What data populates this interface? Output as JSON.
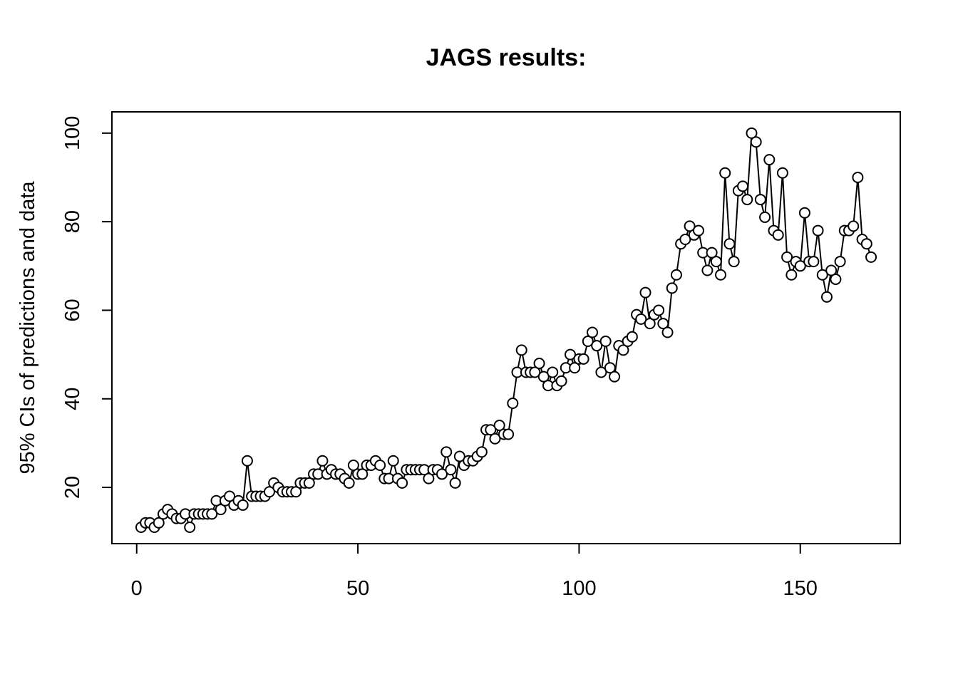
{
  "chart_data": {
    "type": "line",
    "title": "JAGS results:",
    "ylabel": "95% CIs of predictions and data",
    "x": [
      1,
      2,
      3,
      4,
      5,
      6,
      7,
      8,
      9,
      10,
      11,
      12,
      13,
      14,
      15,
      16,
      17,
      18,
      19,
      20,
      21,
      22,
      23,
      24,
      25,
      26,
      27,
      28,
      29,
      30,
      31,
      32,
      33,
      34,
      35,
      36,
      37,
      38,
      39,
      40,
      41,
      42,
      43,
      44,
      45,
      46,
      47,
      48,
      49,
      50,
      51,
      52,
      53,
      54,
      55,
      56,
      57,
      58,
      59,
      60,
      61,
      62,
      63,
      64,
      65,
      66,
      67,
      68,
      69,
      70,
      71,
      72,
      73,
      74,
      75,
      76,
      77,
      78,
      79,
      80,
      81,
      82,
      83,
      84,
      85,
      86,
      87,
      88,
      89,
      90,
      91,
      92,
      93,
      94,
      95,
      96,
      97,
      98,
      99,
      100,
      101,
      102,
      103,
      104,
      105,
      106,
      107,
      108,
      109,
      110,
      111,
      112,
      113,
      114,
      115,
      116,
      117,
      118,
      119,
      120,
      121,
      122,
      123,
      124,
      125,
      126,
      127,
      128,
      129,
      130,
      131,
      132,
      133,
      134,
      135,
      136,
      137,
      138,
      139,
      140,
      141,
      142,
      143,
      144,
      145,
      146,
      147,
      148,
      149,
      150,
      151,
      152,
      153,
      154,
      155,
      156,
      157,
      158,
      159,
      160,
      161,
      162,
      163,
      164,
      165,
      166
    ],
    "values": [
      11,
      12,
      12,
      11,
      12,
      14,
      15,
      14,
      13,
      13,
      14,
      11,
      14,
      14,
      14,
      14,
      14,
      17,
      15,
      17,
      18,
      16,
      17,
      16,
      26,
      18,
      18,
      18,
      18,
      19,
      21,
      20,
      19,
      19,
      19,
      19,
      21,
      21,
      21,
      23,
      23,
      26,
      23,
      24,
      23,
      23,
      22,
      21,
      25,
      23,
      23,
      25,
      25,
      26,
      25,
      22,
      22,
      26,
      22,
      21,
      24,
      24,
      24,
      24,
      24,
      22,
      24,
      24,
      23,
      28,
      24,
      21,
      27,
      25,
      26,
      26,
      27,
      28,
      33,
      33,
      31,
      34,
      32,
      32,
      39,
      46,
      51,
      46,
      46,
      46,
      48,
      45,
      43,
      46,
      43,
      44,
      47,
      50,
      47,
      49,
      49,
      53,
      55,
      52,
      46,
      53,
      47,
      45,
      52,
      51,
      53,
      54,
      59,
      58,
      64,
      57,
      59,
      60,
      57,
      55,
      65,
      68,
      75,
      76,
      79,
      77,
      78,
      73,
      69,
      73,
      71,
      68,
      91,
      75,
      71,
      87,
      88,
      85,
      100,
      98,
      85,
      81,
      94,
      78,
      77,
      91,
      72,
      68,
      71,
      70,
      82,
      71,
      71,
      78,
      68,
      63,
      69,
      67,
      71,
      78,
      78,
      79,
      90,
      76,
      75,
      72
    ],
    "color": "#000000",
    "xlim": [
      -5.6,
      172.6
    ],
    "ylim": [
      7.3,
      104.8
    ],
    "xticks": [
      0,
      50,
      100,
      150
    ],
    "yticks": [
      20,
      40,
      60,
      80,
      100
    ]
  }
}
